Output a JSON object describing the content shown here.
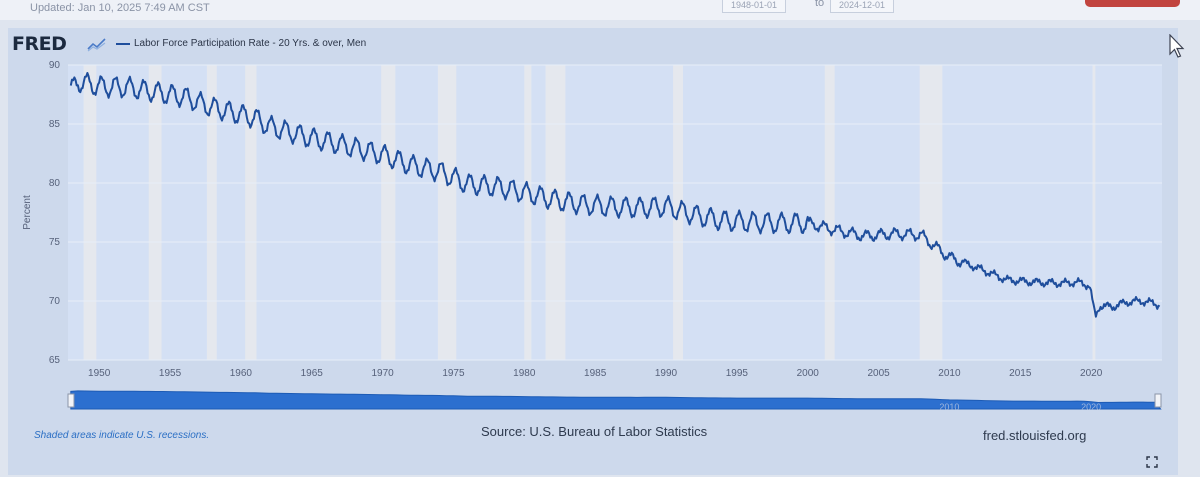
{
  "header": {
    "updated": "Updated: Jan 10, 2025 7:49 AM CST",
    "range_start": "1948-01-01",
    "range_to": "to",
    "range_end": "2024-12-01"
  },
  "graph": {
    "logo": "FRED",
    "logo_icon": "chart-line-icon",
    "source": "Source: U.S. Bureau of Labor Statistics",
    "recession_note": "Shaded areas indicate U.S. recessions.",
    "site": "fred.stlouisfed.org",
    "expand_icon": "fullscreen-icon"
  },
  "colors": {
    "series": "#1f4e9c",
    "recession": "#e5e8ee",
    "plot_bg": "#d4e0f4",
    "navigator": "#2c6fcf"
  },
  "chart_data": {
    "type": "line",
    "ylabel": "Percent",
    "ylim": [
      65,
      90
    ],
    "yticks": [
      65,
      70,
      75,
      80,
      85,
      90
    ],
    "xlim": [
      1947.8,
      2025.0
    ],
    "xticks": [
      1950,
      1955,
      1960,
      1965,
      1970,
      1975,
      1980,
      1985,
      1990,
      1995,
      2000,
      2005,
      2010,
      2015,
      2020
    ],
    "navigator_labels": [
      "2010",
      "2020"
    ],
    "grid": true,
    "legend_position": "top-left",
    "series": [
      {
        "name": "Labor Force Participation Rate - 20 Yrs. & over, Men",
        "seasonal_amplitude": 0.8,
        "points": [
          [
            1948.0,
            87.8
          ],
          [
            1948.5,
            88.6
          ],
          [
            1950.0,
            88.2
          ],
          [
            1952.0,
            88.1
          ],
          [
            1954.0,
            87.7
          ],
          [
            1956.0,
            87.3
          ],
          [
            1958.0,
            86.4
          ],
          [
            1960.0,
            85.8
          ],
          [
            1961.0,
            85.5
          ],
          [
            1962.0,
            84.8
          ],
          [
            1965.0,
            83.8
          ],
          [
            1968.0,
            83.0
          ],
          [
            1970.0,
            82.4
          ],
          [
            1972.0,
            81.5
          ],
          [
            1974.0,
            81.0
          ],
          [
            1976.0,
            79.9
          ],
          [
            1978.0,
            79.7
          ],
          [
            1980.0,
            79.2
          ],
          [
            1982.0,
            78.6
          ],
          [
            1984.0,
            78.2
          ],
          [
            1986.0,
            78.0
          ],
          [
            1988.0,
            77.9
          ],
          [
            1990.0,
            78.0
          ],
          [
            1992.0,
            77.3
          ],
          [
            1994.0,
            76.8
          ],
          [
            1996.0,
            76.7
          ],
          [
            1998.0,
            76.6
          ],
          [
            2000.0,
            76.6
          ],
          [
            2002.0,
            76.0
          ],
          [
            2004.0,
            75.5
          ],
          [
            2006.0,
            75.7
          ],
          [
            2008.0,
            75.6
          ],
          [
            2009.0,
            74.6
          ],
          [
            2010.0,
            73.7
          ],
          [
            2012.0,
            72.8
          ],
          [
            2014.0,
            71.8
          ],
          [
            2016.0,
            71.6
          ],
          [
            2018.0,
            71.5
          ],
          [
            2019.0,
            71.6
          ],
          [
            2019.9,
            71.3
          ],
          [
            2020.3,
            68.6
          ],
          [
            2020.6,
            69.6
          ],
          [
            2021.5,
            69.5
          ],
          [
            2022.5,
            69.9
          ],
          [
            2023.5,
            70.0
          ],
          [
            2024.5,
            69.8
          ],
          [
            2024.9,
            69.6
          ]
        ]
      }
    ],
    "recessions": [
      [
        1948.9,
        1949.8
      ],
      [
        1953.5,
        1954.4
      ],
      [
        1957.6,
        1958.3
      ],
      [
        1960.3,
        1961.1
      ],
      [
        1969.9,
        1970.9
      ],
      [
        1973.9,
        1975.2
      ],
      [
        1980.0,
        1980.5
      ],
      [
        1981.5,
        1982.9
      ],
      [
        1990.5,
        1991.2
      ],
      [
        2001.2,
        2001.9
      ],
      [
        2007.9,
        2009.5
      ],
      [
        2020.1,
        2020.3
      ]
    ]
  }
}
